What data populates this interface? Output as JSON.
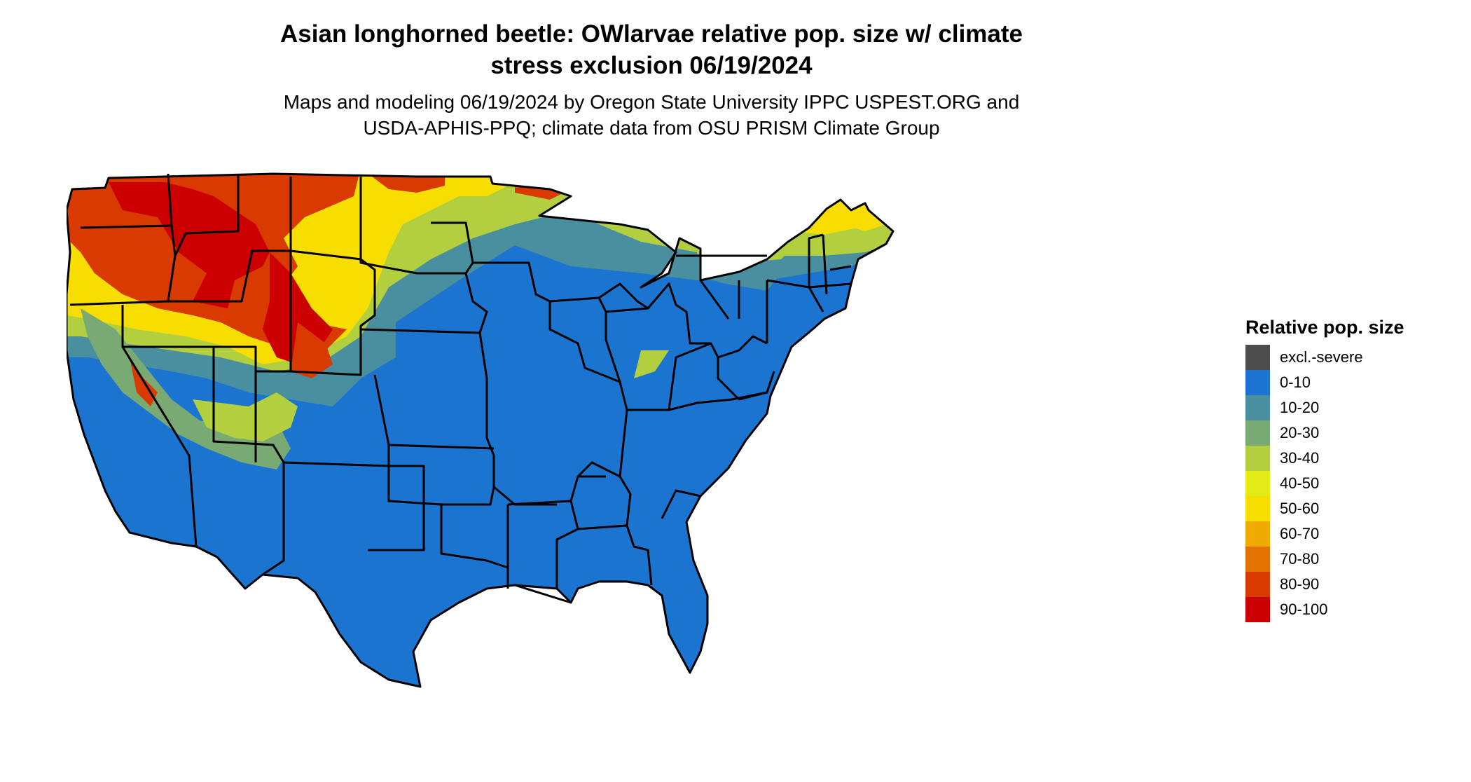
{
  "title": {
    "line1": "Asian longhorned beetle: OWlarvae relative pop. size w/ climate",
    "line2": "stress exclusion 06/19/2024"
  },
  "subtitle": {
    "line1": "Maps and modeling 06/19/2024 by Oregon State University IPPC USPEST.ORG and",
    "line2": "USDA-APHIS-PPQ; climate data from OSU PRISM Climate Group"
  },
  "legend": {
    "title": "Relative pop. size",
    "items": [
      {
        "label": "excl.-severe",
        "color": "#4d4d4d"
      },
      {
        "label": "0-10",
        "color": "#1b74d0"
      },
      {
        "label": "10-20",
        "color": "#4a8fa0"
      },
      {
        "label": "20-30",
        "color": "#7aaa74"
      },
      {
        "label": "30-40",
        "color": "#b2cf3f"
      },
      {
        "label": "40-50",
        "color": "#e2eb16"
      },
      {
        "label": "50-60",
        "color": "#f7de00"
      },
      {
        "label": "60-70",
        "color": "#efab00"
      },
      {
        "label": "70-80",
        "color": "#e47200"
      },
      {
        "label": "80-90",
        "color": "#d83a00"
      },
      {
        "label": "90-100",
        "color": "#cc0000"
      }
    ]
  }
}
